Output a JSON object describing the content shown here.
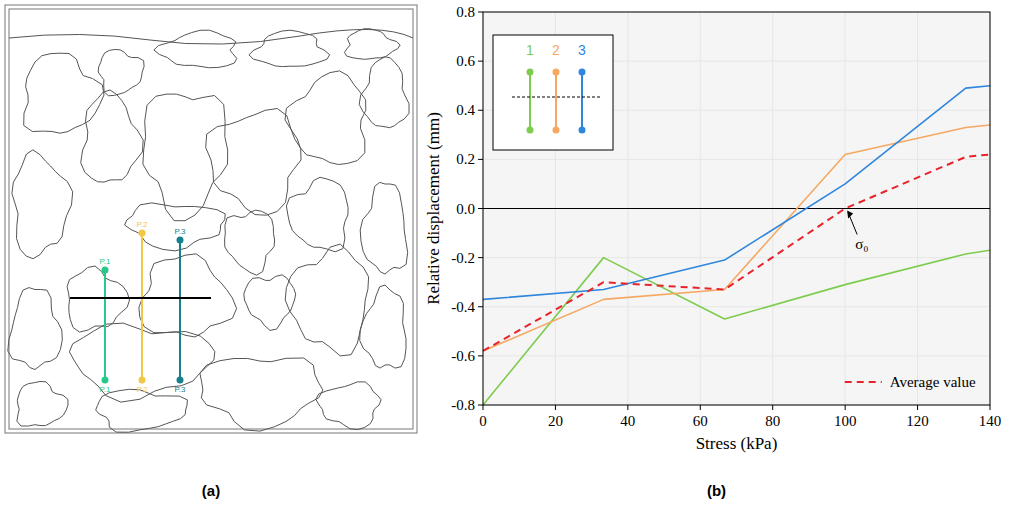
{
  "captions": [
    "(a)",
    "(b)"
  ],
  "diagram": {
    "probes": [
      {
        "label": "P.1",
        "color": "#27c98a"
      },
      {
        "label": "P.2",
        "color": "#f2c744"
      },
      {
        "label": "P.3",
        "color": "#17808f"
      }
    ]
  },
  "chart_data": {
    "type": "line",
    "x_label": "Stress (kPa)",
    "y_label": "Relative displacement (mm)",
    "x": [
      0,
      33.3,
      66.7,
      100,
      133.3,
      140
    ],
    "series": [
      {
        "name": "1",
        "color": "#7dcc4e",
        "line_style": "solid",
        "values": [
          -0.8,
          -0.2,
          -0.45,
          -0.31,
          -0.185,
          -0.17
        ]
      },
      {
        "name": "2",
        "color": "#f5a862",
        "line_style": "solid",
        "values": [
          -0.58,
          -0.37,
          -0.33,
          0.22,
          0.33,
          0.34
        ]
      },
      {
        "name": "3",
        "color": "#2f86dd",
        "line_style": "solid",
        "values": [
          -0.37,
          -0.33,
          -0.21,
          0.1,
          0.49,
          0.5
        ]
      },
      {
        "name": "Average value",
        "color": "#e8232b",
        "line_style": "dashed",
        "values": [
          -0.58,
          -0.3,
          -0.33,
          0.0,
          0.21,
          0.22
        ]
      }
    ],
    "xlim": [
      0,
      140
    ],
    "xticks": [
      0,
      20,
      40,
      60,
      80,
      100,
      120,
      140
    ],
    "ylim": [
      -0.8,
      0.8
    ],
    "yticks": [
      {
        "value": -0.8,
        "label": "-0.8"
      },
      {
        "value": -0.6,
        "label": "-0.6"
      },
      {
        "value": -0.4,
        "label": "-0.4"
      },
      {
        "value": -0.2,
        "label": "-0.2"
      },
      {
        "value": 0,
        "label": "0.0"
      },
      {
        "value": 0.2,
        "label": "0.2"
      },
      {
        "value": 0.4,
        "label": "0.4"
      },
      {
        "value": 0.6,
        "label": "0.6"
      },
      {
        "value": 0.8,
        "label": "0.8"
      }
    ],
    "grid": true,
    "legend": "upper left",
    "annotations": [
      {
        "text": "σ₀",
        "x": 100,
        "y": 0
      }
    ]
  }
}
